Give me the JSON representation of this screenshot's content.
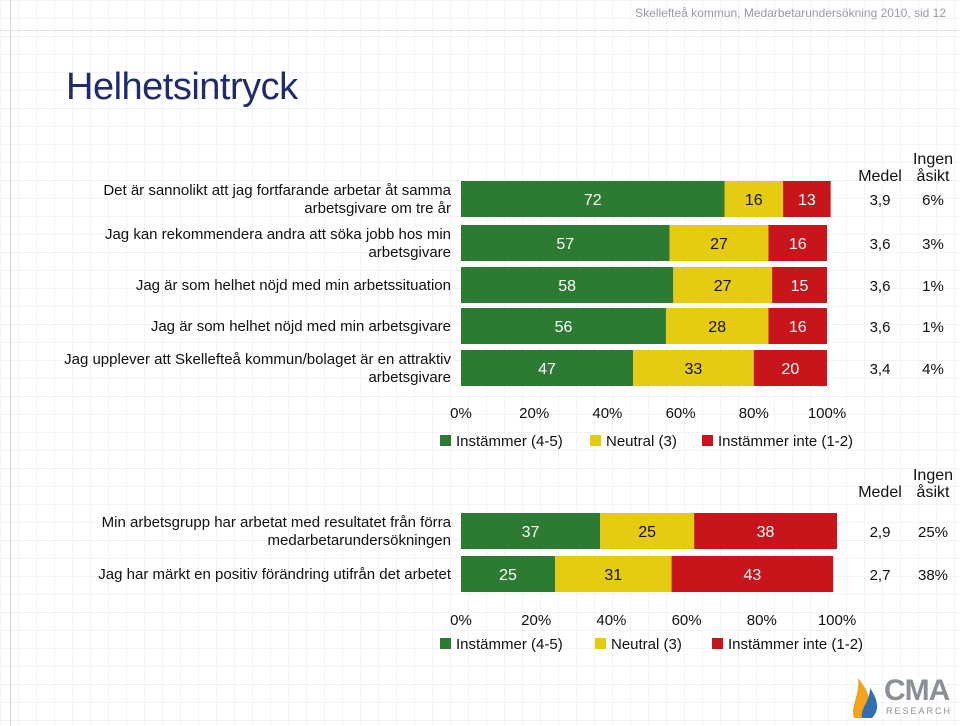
{
  "header": {
    "text": "Skellefteå kommun, Medarbetarundersökning 2010, sid 12"
  },
  "page": {
    "title": "Helhetsintryck"
  },
  "logo": {
    "main": "CMA",
    "sub": "RESEARCH"
  },
  "colors": {
    "agree": "#2d7a32",
    "neutral": "#e6cb13",
    "disagree": "#c8151c"
  },
  "chart_data": [
    {
      "type": "bar",
      "orientation": "horizontal",
      "stacked": true,
      "title": "",
      "col_headers": {
        "mean": "Medel",
        "no_opinion": [
          "Ingen",
          "åsikt"
        ]
      },
      "categories": [
        [
          "Det är sannolikt att jag fortfarande arbetar åt samma",
          "arbetsgivare om tre år"
        ],
        [
          "Jag kan rekommendera andra att söka jobb hos min",
          "arbetsgivare"
        ],
        [
          "Jag är som helhet nöjd med min arbetssituation"
        ],
        [
          "Jag är som helhet nöjd med min arbetsgivare"
        ],
        [
          "Jag upplever att Skellefteå kommun/bolaget är en attraktiv",
          "arbetsgivare"
        ]
      ],
      "series": [
        {
          "name": "Instämmer (4-5)",
          "values": [
            72,
            57,
            58,
            56,
            47
          ]
        },
        {
          "name": "Neutral (3)",
          "values": [
            16,
            27,
            27,
            28,
            33
          ]
        },
        {
          "name": "Instämmer inte (1-2)",
          "values": [
            13,
            16,
            15,
            16,
            20
          ]
        }
      ],
      "mean": [
        "3,9",
        "3,6",
        "3,6",
        "3,6",
        "3,4"
      ],
      "no_opinion": [
        "6%",
        "3%",
        "1%",
        "1%",
        "4%"
      ],
      "xlim": [
        0,
        100
      ],
      "xticks": [
        "0%",
        "20%",
        "40%",
        "60%",
        "80%",
        "100%"
      ],
      "legend": "bottom"
    },
    {
      "type": "bar",
      "orientation": "horizontal",
      "stacked": true,
      "title": "",
      "col_headers": {
        "mean": "Medel",
        "no_opinion": [
          "Ingen",
          "åsikt"
        ]
      },
      "categories": [
        [
          "Min arbetsgrupp har arbetat med resultatet från förra",
          "medarbetarundersökningen"
        ],
        [
          "Jag har märkt en positiv förändring utifrån det arbetet"
        ]
      ],
      "series": [
        {
          "name": "Instämmer (4-5)",
          "values": [
            37,
            25
          ]
        },
        {
          "name": "Neutral (3)",
          "values": [
            25,
            31
          ]
        },
        {
          "name": "Instämmer inte (1-2)",
          "values": [
            38,
            43
          ]
        }
      ],
      "mean": [
        "2,9",
        "2,7"
      ],
      "no_opinion": [
        "25%",
        "38%"
      ],
      "xlim": [
        0,
        100
      ],
      "xticks": [
        "0%",
        "20%",
        "40%",
        "60%",
        "80%",
        "100%"
      ],
      "legend": "bottom"
    }
  ]
}
